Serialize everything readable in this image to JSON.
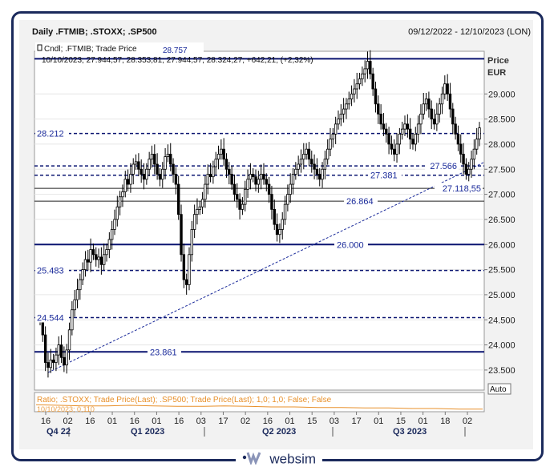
{
  "header": {
    "title": "Daily .FTMIB; .STOXX; .SP500",
    "date_range": "09/12/2022 - 12/10/2023 (LON)"
  },
  "legend": {
    "line1": "Cndl; .FTMIB; Trade Price",
    "line2": "10/10/2023; 27.944,57; 28.353,81; 27.944,57; 28.324,27; +642,21; (+2,32%)",
    "overlap_value": "28.757"
  },
  "axis": {
    "title": "Price",
    "unit": "EUR",
    "auto_label": "Auto",
    "y_ticks": [
      "29.000",
      "28.500",
      "28.000",
      "27.500",
      "27.000",
      "26.500",
      "26.000",
      "25.500",
      "25.000",
      "24.500",
      "24.000",
      "23.500"
    ],
    "x_ticks": [
      "16",
      "02",
      "16",
      "01",
      "16",
      "01",
      "16",
      "03",
      "17",
      "02",
      "16",
      "01",
      "15",
      "03",
      "17",
      "01",
      "15",
      "01",
      "18",
      "02"
    ],
    "periods": [
      "Q4 22",
      "Q1 2023",
      "Q2 2023",
      "Q3 2023"
    ]
  },
  "lower_panel": {
    "label": "Ratio; .STOXX; Trade Price(Last); .SP500; Trade Price(Last);  1,0; 1,0; False; False",
    "sublabel": "10/10/2023; 0,110"
  },
  "brand": {
    "name": "websim"
  },
  "colors": {
    "solid_level": "#0a1470",
    "dashed_level": "#0a1470",
    "thin_level": "#222222",
    "ratio_line": "#e8902a",
    "level_text": "#1a2a9a",
    "candle": "#000000"
  },
  "chart_data": {
    "type": "candlestick",
    "title": "Daily .FTMIB; .STOXX; .SP500",
    "ylabel": "Price EUR",
    "ylim": [
      23100,
      29850
    ],
    "date_range": [
      "2022-09-12",
      "2023-10-12"
    ],
    "last_candle": {
      "date": "10/10/2023",
      "open": 27944.57,
      "high": 28353.81,
      "low": 27944.57,
      "close": 28324.27,
      "change": 642.21,
      "change_pct": 2.32
    },
    "levels": [
      {
        "label": "",
        "value": 29700,
        "style": "solid"
      },
      {
        "label": "28.212",
        "value": 28212,
        "style": "dashed",
        "label_side": "left"
      },
      {
        "label": "27.566",
        "value": 27566,
        "style": "dashed",
        "label_side": "right"
      },
      {
        "label": "27.381",
        "value": 27381,
        "style": "dashed",
        "label_side": "mid"
      },
      {
        "label": "27.118,55",
        "value": 27118.55,
        "style": "thin",
        "label_side": "right"
      },
      {
        "label": "26.864",
        "value": 26864,
        "style": "thin",
        "label_side": "mid"
      },
      {
        "label": "26.000",
        "value": 26000,
        "style": "solid",
        "label_side": "mid"
      },
      {
        "label": "25.483",
        "value": 25483,
        "style": "dashed",
        "label_side": "left"
      },
      {
        "label": "24.544",
        "value": 24544,
        "style": "dashed",
        "label_side": "left"
      },
      {
        "label": "23.861",
        "value": 23861,
        "style": "solid",
        "label_side": "mid"
      }
    ],
    "trendline": {
      "from": {
        "x": 0.03,
        "y": 23450
      },
      "to": {
        "x": 1.0,
        "y": 27640
      }
    },
    "closes": [
      24500,
      24200,
      23650,
      23550,
      23700,
      23650,
      23800,
      24000,
      23750,
      23600,
      23900,
      24300,
      24700,
      24900,
      25100,
      25300,
      25500,
      25700,
      25650,
      25900,
      25800,
      25700,
      25750,
      25600,
      25800,
      25900,
      26100,
      26300,
      26500,
      26750,
      26950,
      27050,
      27300,
      27200,
      27400,
      27600,
      27650,
      27500,
      27400,
      27300,
      27500,
      27700,
      27800,
      27600,
      27400,
      27300,
      27500,
      27750,
      27800,
      27600,
      27400,
      27200,
      26600,
      25800,
      25300,
      25200,
      25800,
      26300,
      26600,
      26700,
      26750,
      26900,
      27200,
      27400,
      27350,
      27550,
      27700,
      27800,
      27900,
      27700,
      27500,
      27400,
      27200,
      27000,
      26900,
      26700,
      26800,
      27100,
      27300,
      27400,
      27350,
      27200,
      27300,
      27400,
      27300,
      27200,
      27000,
      26700,
      26400,
      26200,
      26300,
      26500,
      26800,
      27000,
      27200,
      27400,
      27500,
      27600,
      27700,
      27800,
      27900,
      27700,
      27600,
      27500,
      27400,
      27300,
      27500,
      27700,
      27900,
      28100,
      28200,
      28400,
      28500,
      28600,
      28700,
      28800,
      28900,
      29000,
      29100,
      29200,
      29300,
      29400,
      29500,
      29650,
      29400,
      29100,
      28800,
      28600,
      28400,
      28300,
      28200,
      28000,
      27900,
      27800,
      28000,
      28200,
      28300,
      28400,
      28300,
      28100,
      28000,
      28200,
      28400,
      28600,
      28800,
      28900,
      28700,
      28500,
      28400,
      28600,
      28800,
      29000,
      29200,
      29000,
      28700,
      28400,
      28200,
      28000,
      27800,
      27600,
      27400,
      27500,
      27700,
      27900,
      28100,
      28324
    ],
    "ratio_series": [
      0.118,
      0.117,
      0.116,
      0.116,
      0.117,
      0.116,
      0.115,
      0.115,
      0.116,
      0.115,
      0.114,
      0.114,
      0.113,
      0.113,
      0.112,
      0.112,
      0.111,
      0.111,
      0.11,
      0.11
    ]
  }
}
